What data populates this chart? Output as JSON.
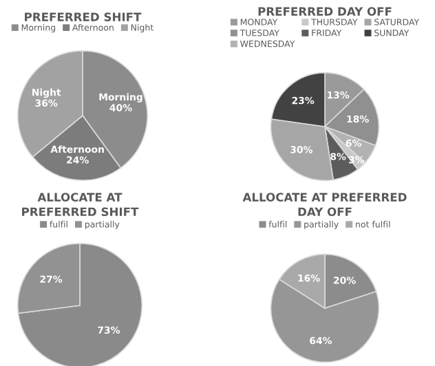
{
  "chart_data": [
    {
      "type": "pie",
      "title": "PREFERRED SHIFT",
      "categories": [
        "Morning",
        "Afternoon",
        "Night"
      ],
      "values": [
        40,
        24,
        36
      ],
      "colors": [
        "#8c8c8c",
        "#7c7c7c",
        "#a2a2a2"
      ],
      "value_labels": [
        "Morning\n40%",
        "Afternoon\n24%",
        "Night\n36%"
      ],
      "legend": "top"
    },
    {
      "type": "pie",
      "title": "PREFERRED DAY OFF",
      "categories": [
        "MONDAY",
        "TUESDAY",
        "WEDNESDAY",
        "THURSDAY",
        "FRIDAY",
        "SATURDAY",
        "SUNDAY"
      ],
      "values": [
        13,
        18,
        6,
        3,
        8,
        30,
        23
      ],
      "colors": [
        "#9a9a9a",
        "#909090",
        "#b2b2b2",
        "#c8c8c8",
        "#5c5c5c",
        "#a6a6a6",
        "#424242"
      ],
      "value_labels": [
        "13%",
        "18%",
        "6%",
        "3%",
        "8%",
        "30%",
        "23%"
      ],
      "legend": "top"
    },
    {
      "type": "pie",
      "title": "ALLOCATE AT PREFERRED SHIFT",
      "categories": [
        "fulfil",
        "partially"
      ],
      "values": [
        73,
        27
      ],
      "colors": [
        "#8a8a8a",
        "#929292"
      ],
      "value_labels": [
        "73%",
        "27%"
      ],
      "legend": "top"
    },
    {
      "type": "pie",
      "title": "ALLOCATE AT PREFERRED DAY OFF",
      "categories": [
        "fulfil",
        "partially",
        "not fulfil"
      ],
      "values": [
        20,
        64,
        16
      ],
      "colors": [
        "#8c8c8c",
        "#969696",
        "#a9a9a9"
      ],
      "value_labels": [
        "20%",
        "64%",
        "16%"
      ],
      "legend": "top"
    }
  ]
}
